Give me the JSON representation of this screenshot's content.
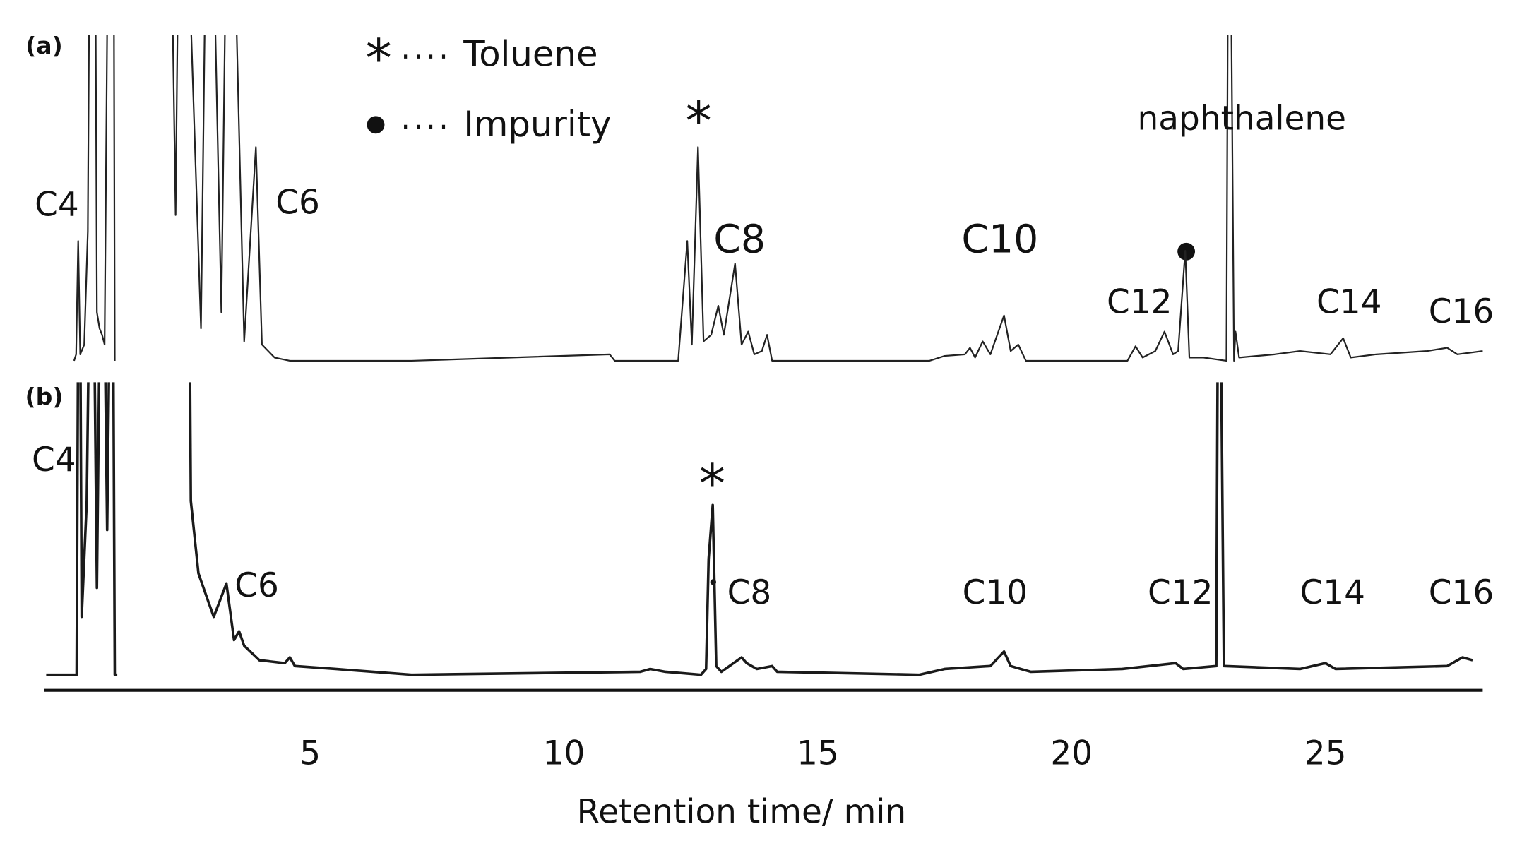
{
  "chart_data": [
    {
      "type": "line",
      "label": "(a)",
      "xlim": [
        -0.25,
        28.1
      ],
      "ylim": [
        0,
        100
      ],
      "x": [
        0.35,
        0.39,
        0.43,
        0.47,
        0.55,
        0.62,
        0.68,
        0.75,
        0.8,
        0.85,
        0.9,
        0.95,
        1.05,
        1.12,
        1.15,
        1.6,
        2.2,
        2.35,
        2.45,
        2.85,
        3.0,
        3.25,
        3.4,
        3.7,
        3.93,
        4.05,
        4.3,
        4.6,
        7,
        10.9,
        11.0,
        12.25,
        12.43,
        12.52,
        12.64,
        12.75,
        12.9,
        13.04,
        13.15,
        13.37,
        13.5,
        13.63,
        13.75,
        13.9,
        14.0,
        14.1,
        17.2,
        17.5,
        17.9,
        18.0,
        18.1,
        18.25,
        18.4,
        18.67,
        18.8,
        18.95,
        19.1,
        21.1,
        21.26,
        21.4,
        21.65,
        21.83,
        22.0,
        22.1,
        22.24,
        22.32,
        22.6,
        23.05,
        23.1,
        23.2,
        23.23,
        23.3,
        24.0,
        24.5,
        25.1,
        25.35,
        25.5,
        26.0,
        27.0,
        27.4,
        27.6,
        28.1
      ],
      "series": [
        {
          "color": "#222222",
          "values": [
            0,
            2,
            37,
            2,
            5,
            40,
            200,
            200,
            15,
            10,
            8,
            5,
            200,
            200,
            0,
            null,
            200,
            45,
            200,
            10,
            200,
            15,
            200,
            6,
            66,
            5,
            1,
            0,
            0,
            2,
            0,
            0,
            37,
            5,
            66,
            6,
            8,
            17,
            8,
            30,
            5,
            9,
            2,
            3,
            8,
            0,
            0,
            1.5,
            2,
            4,
            1,
            6,
            2,
            14,
            3,
            5,
            0,
            0,
            4.5,
            1,
            3,
            9,
            2,
            3,
            34,
            1,
            1,
            0,
            200,
            0,
            9,
            1,
            2,
            3,
            2,
            7,
            1,
            2,
            3,
            4,
            2,
            3
          ]
        }
      ],
      "legend": [
        {
          "symbol": "*",
          "label": "Toluene"
        },
        {
          "label": "Impurity"
        }
      ],
      "annotations": [
        {
          "text": "C4"
        },
        {
          "text": "C6"
        },
        {
          "text": "*"
        },
        {
          "text": "C8",
          "color": "#d4145a"
        },
        {
          "text": "C10",
          "color": "#d4145a"
        },
        {
          "text": "C12"
        },
        {
          "text": "naphthalene"
        },
        {
          "text": "C14"
        },
        {
          "text": "C16"
        }
      ]
    },
    {
      "type": "line",
      "label": "(b)",
      "xlim": [
        -0.25,
        28.1
      ],
      "ylim": [
        0,
        100
      ],
      "xticks": [
        5,
        10,
        15,
        20,
        25
      ],
      "xlabel": "Retention time/ min",
      "x": [
        -0.2,
        0.35,
        0.4,
        0.45,
        0.5,
        0.6,
        0.7,
        0.8,
        0.9,
        1.0,
        1.1,
        1.15,
        1.2,
        1.9,
        2.6,
        2.65,
        2.8,
        2.9,
        3.0,
        3.1,
        3.35,
        3.5,
        3.6,
        3.7,
        4.0,
        4.5,
        4.6,
        4.7,
        5.5,
        7,
        11.5,
        11.7,
        12.0,
        12.7,
        12.8,
        12.85,
        12.93,
        13.0,
        13.1,
        13.5,
        13.6,
        13.8,
        14.1,
        14.2,
        17,
        17.5,
        18.4,
        18.67,
        18.8,
        19,
        19.2,
        21,
        22.05,
        22.2,
        22.85,
        22.9,
        23.0,
        24.5,
        25.0,
        25.2,
        27.4,
        27.7,
        27.9
      ],
      "series": [
        {
          "color": "#1a1a1a",
          "values": [
            0,
            0,
            0,
            200,
            20,
            60,
            200,
            30,
            200,
            50,
            200,
            0,
            0,
            null,
            200,
            60,
            35,
            30,
            25,
            20,
            31.5,
            12,
            15,
            10,
            5,
            4,
            6,
            3,
            2,
            0,
            1,
            2,
            1,
            0,
            2,
            40,
            58.6,
            3,
            1,
            6,
            4,
            2,
            3,
            1,
            0,
            2,
            3,
            8,
            3,
            2,
            1,
            2,
            4,
            2,
            3,
            200,
            3,
            2,
            4,
            2,
            3,
            6,
            5
          ]
        }
      ],
      "annotations": [
        {
          "text": "C4"
        },
        {
          "text": "C6"
        },
        {
          "text": "*"
        },
        {
          "text": "C8"
        },
        {
          "text": "C10"
        },
        {
          "text": "C12"
        },
        {
          "text": "C14"
        },
        {
          "text": "C16"
        }
      ]
    }
  ]
}
